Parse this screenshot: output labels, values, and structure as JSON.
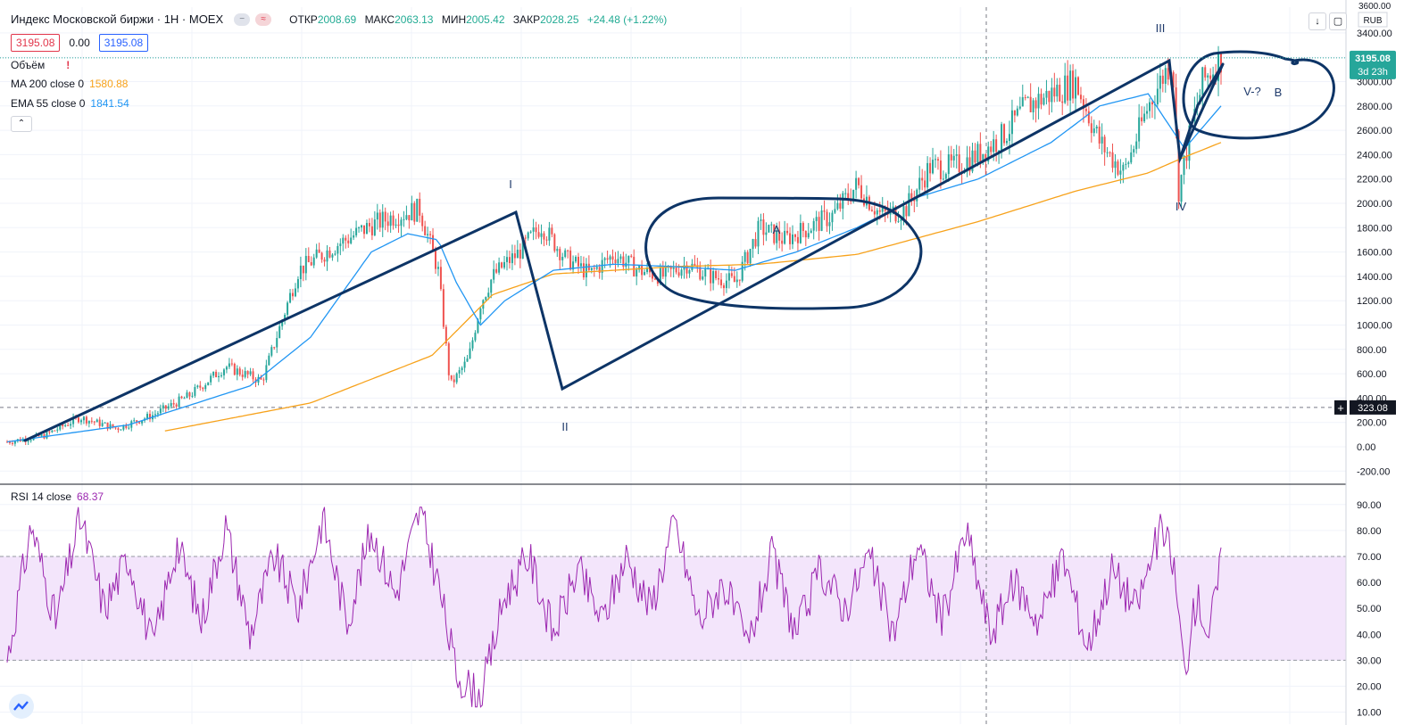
{
  "header": {
    "title": "Индекс Московской биржи · 1Н · MOEX",
    "ohlc": [
      {
        "label": "ОТКР",
        "value": "2008.69"
      },
      {
        "label": "МАКС",
        "value": "2063.13"
      },
      {
        "label": "МИН",
        "value": "2005.42"
      },
      {
        "label": "ЗАКР",
        "value": "2028.25"
      }
    ],
    "change": "+24.48 (+1.22%)",
    "sell_price": "3195.08",
    "spread": "0.00",
    "buy_price": "3195.08"
  },
  "indicators": {
    "volume_label": "Объём",
    "ma_label": "MA 200 close 0",
    "ma_value": "1580.88",
    "ema_label": "EMA 55 close 0",
    "ema_value": "1841.54",
    "rsi_label": "RSI 14 close",
    "rsi_value": "68.37"
  },
  "price_axis": {
    "currency": "RUB",
    "top_partial": "3600.00",
    "ticks": [
      "3400.00",
      "3200.00",
      "3000.00",
      "2800.00",
      "2600.00",
      "2400.00",
      "2200.00",
      "2000.00",
      "1800.00",
      "1600.00",
      "1400.00",
      "1200.00",
      "1000.00",
      "800.00",
      "600.00",
      "400.00",
      "200.00",
      "0.00",
      "-200.00"
    ],
    "last_price": "3195.08",
    "countdown": "3d 23h",
    "crosshair_price": "323.08"
  },
  "rsi_axis": {
    "ticks": [
      "90.00",
      "80.00",
      "70.00",
      "60.00",
      "50.00",
      "40.00",
      "30.00",
      "20.00",
      "10.00"
    ]
  },
  "annotations": {
    "wave_1": "I",
    "wave_2": "II",
    "wave_3": "III",
    "wave_4": "IV",
    "wave_5": "V-?",
    "circle_a": "A",
    "circle_b": "B"
  },
  "colors": {
    "candle_up": "#26a69a",
    "candle_down": "#ef5350",
    "ema": "#2196f3",
    "ma": "#f7a21b",
    "rsi": "#9c27b0",
    "rsi_band": "#f3e5fb",
    "drawing": "#0d3466"
  },
  "chart_data": [
    {
      "type": "candlestick",
      "title": "Индекс Московской биржи · 1Н · MOEX",
      "ylim": [
        -300,
        3650
      ],
      "series": [
        {
          "name": "Индекс Московской биржи",
          "t": [
            0,
            0.03,
            0.06,
            0.09,
            0.12,
            0.15,
            0.18,
            0.21,
            0.24,
            0.27,
            0.3,
            0.32,
            0.34,
            0.355,
            0.365,
            0.38,
            0.39,
            0.4,
            0.41,
            0.42,
            0.44,
            0.46,
            0.48,
            0.5,
            0.52,
            0.54,
            0.56,
            0.58,
            0.6,
            0.62,
            0.64,
            0.66,
            0.68,
            0.7,
            0.72,
            0.74,
            0.76,
            0.78,
            0.8,
            0.82,
            0.84,
            0.86,
            0.88,
            0.9,
            0.92,
            0.94,
            0.955,
            0.96,
            0.965,
            0.975,
            0.985,
            1.0
          ],
          "close": [
            40,
            90,
            240,
            150,
            260,
            420,
            660,
            540,
            1450,
            1650,
            1820,
            1900,
            1950,
            1450,
            500,
            720,
            1180,
            1400,
            1500,
            1580,
            1820,
            1550,
            1420,
            1580,
            1450,
            1400,
            1500,
            1400,
            1350,
            1800,
            1700,
            1800,
            1900,
            2150,
            1900,
            1950,
            2300,
            2300,
            2400,
            2550,
            2800,
            2900,
            3000,
            2500,
            2250,
            2800,
            3100,
            3195,
            2100,
            2600,
            3000,
            3195
          ]
        },
        {
          "name": "MA 200 close 0",
          "t": [
            0.13,
            0.25,
            0.35,
            0.4,
            0.45,
            0.55,
            0.62,
            0.7,
            0.8,
            0.88,
            0.94,
            0.97,
            1.0
          ],
          "value": [
            130,
            360,
            750,
            1250,
            1420,
            1480,
            1500,
            1580,
            1850,
            2100,
            2250,
            2380,
            2500
          ]
        },
        {
          "name": "EMA 55 close 0",
          "t": [
            0,
            0.1,
            0.2,
            0.25,
            0.3,
            0.33,
            0.355,
            0.37,
            0.39,
            0.41,
            0.45,
            0.5,
            0.55,
            0.6,
            0.65,
            0.7,
            0.75,
            0.8,
            0.86,
            0.9,
            0.94,
            0.97,
            1.0
          ],
          "value": [
            40,
            180,
            500,
            900,
            1600,
            1750,
            1700,
            1350,
            1000,
            1200,
            1450,
            1500,
            1480,
            1450,
            1600,
            1800,
            2050,
            2200,
            2500,
            2800,
            2900,
            2450,
            2800
          ]
        }
      ]
    },
    {
      "type": "line",
      "title": "RSI 14 close",
      "ylim": [
        5,
        95
      ],
      "bands": [
        30,
        70
      ],
      "series": [
        {
          "name": "RSI 14 close",
          "t": [
            0,
            0.02,
            0.04,
            0.06,
            0.08,
            0.1,
            0.12,
            0.14,
            0.16,
            0.18,
            0.2,
            0.22,
            0.24,
            0.26,
            0.28,
            0.3,
            0.32,
            0.34,
            0.355,
            0.37,
            0.39,
            0.41,
            0.43,
            0.45,
            0.47,
            0.49,
            0.51,
            0.53,
            0.55,
            0.57,
            0.59,
            0.61,
            0.63,
            0.65,
            0.67,
            0.69,
            0.71,
            0.73,
            0.75,
            0.77,
            0.79,
            0.81,
            0.83,
            0.85,
            0.87,
            0.89,
            0.91,
            0.93,
            0.95,
            0.96,
            0.97,
            0.98,
            0.99,
            1.0
          ],
          "value": [
            30,
            82,
            45,
            85,
            50,
            70,
            35,
            75,
            45,
            82,
            40,
            70,
            50,
            85,
            45,
            80,
            55,
            88,
            60,
            25,
            15,
            55,
            70,
            40,
            65,
            45,
            70,
            50,
            83,
            45,
            60,
            35,
            70,
            40,
            65,
            50,
            70,
            40,
            75,
            45,
            80,
            40,
            60,
            45,
            70,
            35,
            65,
            50,
            80,
            70,
            25,
            55,
            40,
            67
          ]
        }
      ]
    }
  ]
}
